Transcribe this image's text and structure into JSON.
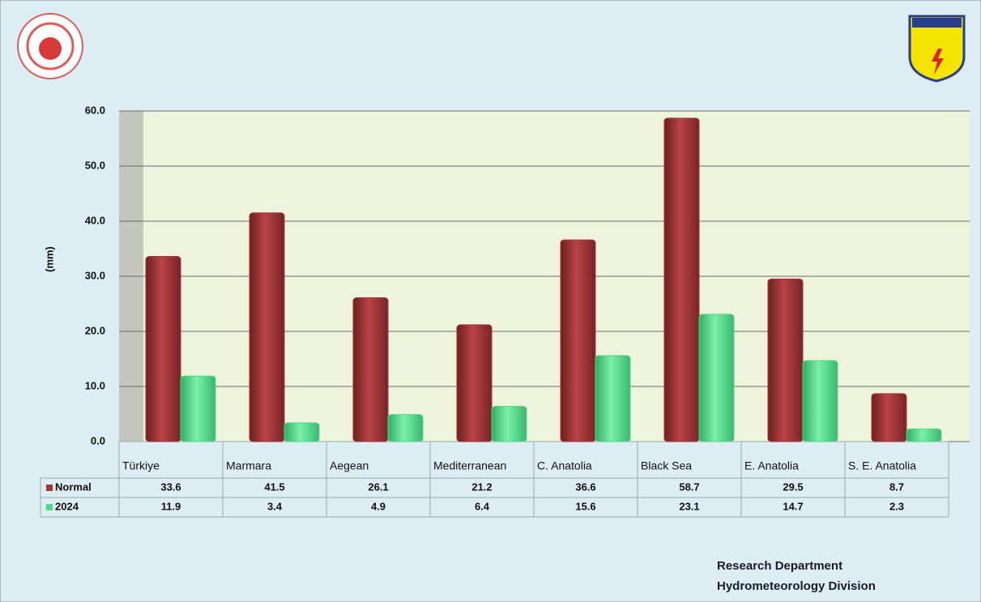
{
  "chart_data": {
    "type": "bar",
    "y_label": "(mm)",
    "categories": [
      "Türkiye",
      "Marmara",
      "Aegean",
      "Mediterranean",
      "C. Anatolia",
      "Black Sea",
      "E. Anatolia",
      "S. E. Anatolia"
    ],
    "series": [
      {
        "name": "Normal",
        "color": "#a63536",
        "values": [
          33.6,
          41.5,
          26.1,
          21.2,
          36.6,
          58.7,
          29.5,
          8.7
        ]
      },
      {
        "name": "2024",
        "color": "#4fd98a",
        "values": [
          11.9,
          3.4,
          4.9,
          6.4,
          15.6,
          23.1,
          14.7,
          2.3
        ]
      }
    ],
    "ylim": [
      0,
      60
    ],
    "yticks": [
      {
        "value": 0,
        "label": "0.0"
      },
      {
        "value": 10,
        "label": "10.0"
      },
      {
        "value": 20,
        "label": "20.0"
      },
      {
        "value": 30,
        "label": "30.0"
      },
      {
        "value": 40,
        "label": "40.0"
      },
      {
        "value": 50,
        "label": "50.0"
      },
      {
        "value": 60,
        "label": "60.0"
      }
    ],
    "grid": true
  },
  "footer": {
    "department": "Research Department",
    "division": "Hydrometeorology Division"
  }
}
